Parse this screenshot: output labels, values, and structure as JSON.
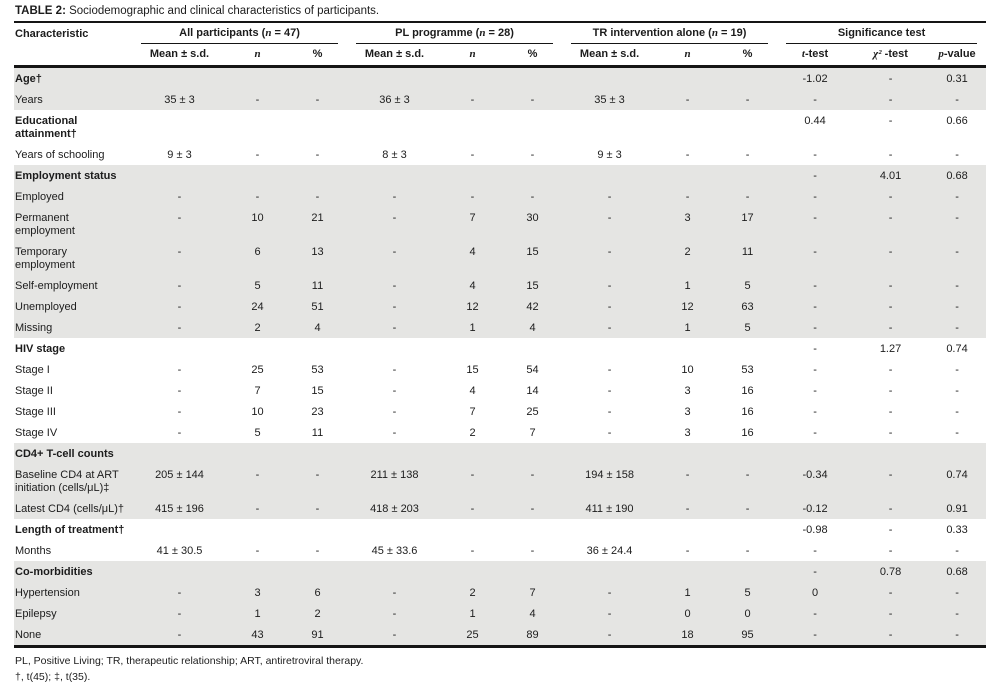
{
  "title": {
    "label": "TABLE 2:",
    "text": " Sociodemographic and clinical characteristics of participants."
  },
  "colors": {
    "row_shade": "#e5e5e3",
    "text": "#1c1c1c",
    "rule": "#151515"
  },
  "table": {
    "characteristic_header": "Characteristic",
    "groups": [
      {
        "pre": "All participants (",
        "n": "n",
        "post": " = 47)"
      },
      {
        "pre": "PL programme (",
        "n": "n",
        "post": " = 28)"
      },
      {
        "pre": "TR intervention alone (",
        "n": "n",
        "post": " = 19)"
      }
    ],
    "significance_header": "Significance test",
    "sub_headers": {
      "mean": "Mean ± s.d.",
      "n": "n",
      "pct": "%"
    },
    "sig_headers": [
      {
        "sym": "t",
        "rest": "-test"
      },
      {
        "sym": "χ²",
        "rest": " -test"
      },
      {
        "sym": "p",
        "rest": "-value"
      }
    ],
    "rows": [
      {
        "label": "Age†",
        "section": true,
        "shade": true,
        "cells": [
          "",
          "",
          "",
          "",
          "",
          "",
          "",
          "",
          "",
          "-1.02",
          "-",
          "0.31"
        ]
      },
      {
        "label": "Years",
        "section": false,
        "shade": true,
        "cells": [
          "35 ± 3",
          "-",
          "-",
          "36 ± 3",
          "-",
          "-",
          "35 ± 3",
          "-",
          "-",
          "-",
          "-",
          "-"
        ]
      },
      {
        "label": "Educational attainment†",
        "section": true,
        "shade": false,
        "cells": [
          "",
          "",
          "",
          "",
          "",
          "",
          "",
          "",
          "",
          "0.44",
          "-",
          "0.66"
        ]
      },
      {
        "label": "Years of schooling",
        "section": false,
        "shade": false,
        "cells": [
          "9 ± 3",
          "-",
          "-",
          "8 ± 3",
          "-",
          "-",
          "9 ± 3",
          "-",
          "-",
          "-",
          "-",
          "-"
        ]
      },
      {
        "label": "Employment status",
        "section": true,
        "shade": true,
        "cells": [
          "",
          "",
          "",
          "",
          "",
          "",
          "",
          "",
          "",
          "-",
          "4.01",
          "0.68"
        ]
      },
      {
        "label": "Employed",
        "section": false,
        "shade": true,
        "cells": [
          "-",
          "-",
          "-",
          "-",
          "-",
          "-",
          "-",
          "-",
          "-",
          "-",
          "-",
          "-"
        ]
      },
      {
        "label": "Permanent employment",
        "section": false,
        "shade": true,
        "cells": [
          "-",
          "10",
          "21",
          "-",
          "7",
          "30",
          "-",
          "3",
          "17",
          "-",
          "-",
          "-"
        ]
      },
      {
        "label": "Temporary employment",
        "section": false,
        "shade": true,
        "cells": [
          "-",
          "6",
          "13",
          "-",
          "4",
          "15",
          "-",
          "2",
          "11",
          "-",
          "-",
          "-"
        ]
      },
      {
        "label": "Self-employment",
        "section": false,
        "shade": true,
        "cells": [
          "-",
          "5",
          "11",
          "-",
          "4",
          "15",
          "-",
          "1",
          "5",
          "-",
          "-",
          "-"
        ]
      },
      {
        "label": "Unemployed",
        "section": false,
        "shade": true,
        "cells": [
          "-",
          "24",
          "51",
          "-",
          "12",
          "42",
          "-",
          "12",
          "63",
          "-",
          "-",
          "-"
        ]
      },
      {
        "label": "Missing",
        "section": false,
        "shade": true,
        "cells": [
          "-",
          "2",
          "4",
          "-",
          "1",
          "4",
          "-",
          "1",
          "5",
          "-",
          "-",
          "-"
        ]
      },
      {
        "label": "HIV stage",
        "section": true,
        "shade": false,
        "cells": [
          "",
          "",
          "",
          "",
          "",
          "",
          "",
          "",
          "",
          "-",
          "1.27",
          "0.74"
        ]
      },
      {
        "label": "Stage I",
        "section": false,
        "shade": false,
        "cells": [
          "-",
          "25",
          "53",
          "-",
          "15",
          "54",
          "-",
          "10",
          "53",
          "-",
          "-",
          "-"
        ]
      },
      {
        "label": "Stage II",
        "section": false,
        "shade": false,
        "cells": [
          "-",
          "7",
          "15",
          "-",
          "4",
          "14",
          "-",
          "3",
          "16",
          "-",
          "-",
          "-"
        ]
      },
      {
        "label": "Stage III",
        "section": false,
        "shade": false,
        "cells": [
          "-",
          "10",
          "23",
          "-",
          "7",
          "25",
          "-",
          "3",
          "16",
          "-",
          "-",
          "-"
        ]
      },
      {
        "label": "Stage IV",
        "section": false,
        "shade": false,
        "cells": [
          "-",
          "5",
          "11",
          "-",
          "2",
          "7",
          "-",
          "3",
          "16",
          "-",
          "-",
          "-"
        ]
      },
      {
        "label": "CD4+ T-cell counts",
        "section": true,
        "shade": true,
        "cells": [
          "",
          "",
          "",
          "",
          "",
          "",
          "",
          "",
          "",
          "",
          "",
          ""
        ]
      },
      {
        "label": "Baseline CD4 at ART initiation (cells/μL)‡",
        "section": false,
        "shade": true,
        "cells": [
          "205 ± 144",
          "-",
          "-",
          "211 ± 138",
          "-",
          "-",
          "194 ± 158",
          "-",
          "-",
          "-0.34",
          "-",
          "0.74"
        ]
      },
      {
        "label": "Latest CD4 (cells/μL)†",
        "section": false,
        "shade": true,
        "cells": [
          "415 ± 196",
          "-",
          "-",
          "418 ± 203",
          "-",
          "-",
          "411 ± 190",
          "-",
          "-",
          "-0.12",
          "-",
          "0.91"
        ]
      },
      {
        "label": "Length of treatment†",
        "section": true,
        "shade": false,
        "cells": [
          "",
          "",
          "",
          "",
          "",
          "",
          "",
          "",
          "",
          "-0.98",
          "-",
          "0.33"
        ]
      },
      {
        "label": "Months",
        "section": false,
        "shade": false,
        "cells": [
          "41 ± 30.5",
          "-",
          "-",
          "45 ± 33.6",
          "-",
          "-",
          "36 ± 24.4",
          "-",
          "-",
          "-",
          "-",
          "-"
        ]
      },
      {
        "label": "Co-morbidities",
        "section": true,
        "shade": true,
        "cells": [
          "",
          "",
          "",
          "",
          "",
          "",
          "",
          "",
          "",
          "-",
          "0.78",
          "0.68"
        ]
      },
      {
        "label": "Hypertension",
        "section": false,
        "shade": true,
        "cells": [
          "-",
          "3",
          "6",
          "-",
          "2",
          "7",
          "-",
          "1",
          "5",
          "0",
          "-",
          "-"
        ]
      },
      {
        "label": "Epilepsy",
        "section": false,
        "shade": true,
        "cells": [
          "-",
          "1",
          "2",
          "-",
          "1",
          "4",
          "-",
          "0",
          "0",
          "-",
          "-",
          "-"
        ]
      },
      {
        "label": "None",
        "section": false,
        "shade": true,
        "cells": [
          "-",
          "43",
          "91",
          "-",
          "25",
          "89",
          "-",
          "18",
          "95",
          "-",
          "-",
          "-"
        ]
      }
    ]
  },
  "footnotes": [
    "PL, Positive Living; TR, therapeutic relationship; ART, antiretroviral therapy.",
    "†, t(45); ‡, t(35)."
  ]
}
